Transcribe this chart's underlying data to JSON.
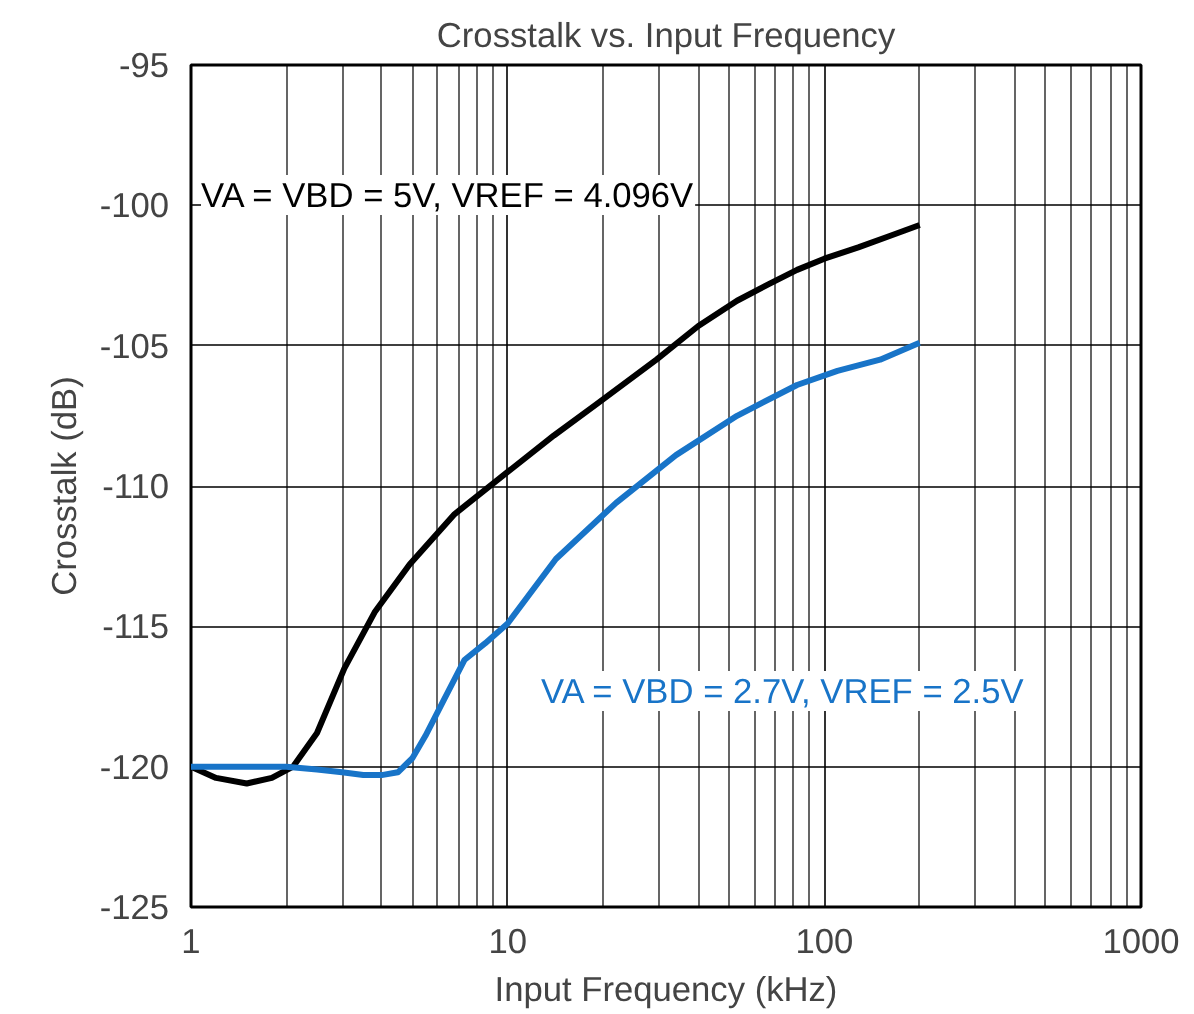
{
  "chart_data": {
    "type": "line",
    "title": "Crosstalk vs. Input Frequency",
    "xlabel": "Input Frequency (kHz)",
    "ylabel": "Crosstalk (dB)",
    "log": "x",
    "xlim": [
      1,
      1000
    ],
    "xticks": [
      1,
      10,
      100,
      1000
    ],
    "ylim": [
      -125,
      -95
    ],
    "yticks": [
      -125,
      -120,
      -115,
      -110,
      -105,
      -100,
      -95
    ],
    "grid": true,
    "marker": "none",
    "line_style": "solid",
    "series": [
      {
        "color": "#000000",
        "x": [
          1,
          1.2,
          1.5,
          1.8,
          2.1,
          2.5,
          3.05,
          3.8,
          4.9,
          6.8,
          10,
          14,
          19,
          29.5,
          40,
          53,
          67,
          82,
          100,
          128,
          160,
          200
        ],
        "values": [
          -120,
          -120.4,
          -120.6,
          -120.4,
          -120,
          -118.8,
          -116.5,
          -114.5,
          -112.8,
          -111,
          -109.5,
          -108.2,
          -107.1,
          -105.5,
          -104.3,
          -103.4,
          -102.8,
          -102.3,
          -101.9,
          -101.5,
          -101.1,
          -100.7
        ]
      },
      {
        "color": "#1874c8",
        "x": [
          1,
          1.5,
          2,
          2.5,
          3,
          3.5,
          4,
          4.5,
          5,
          5.5,
          6.3,
          7.3,
          8.5,
          10,
          14.2,
          22,
          34,
          53,
          82,
          110,
          150,
          200
        ],
        "values": [
          -120,
          -120,
          -120,
          -120.1,
          -120.2,
          -120.3,
          -120.3,
          -120.2,
          -119.7,
          -118.9,
          -117.6,
          -116.2,
          -115.6,
          -114.9,
          -112.6,
          -110.6,
          -108.9,
          -107.5,
          -106.4,
          -105.9,
          -105.5,
          -104.9
        ]
      }
    ],
    "annotations": [
      "VA = VBD = 5V, VREF = 4.096V",
      "VA = VBD = 2.7V, VREF = 2.5V"
    ]
  }
}
